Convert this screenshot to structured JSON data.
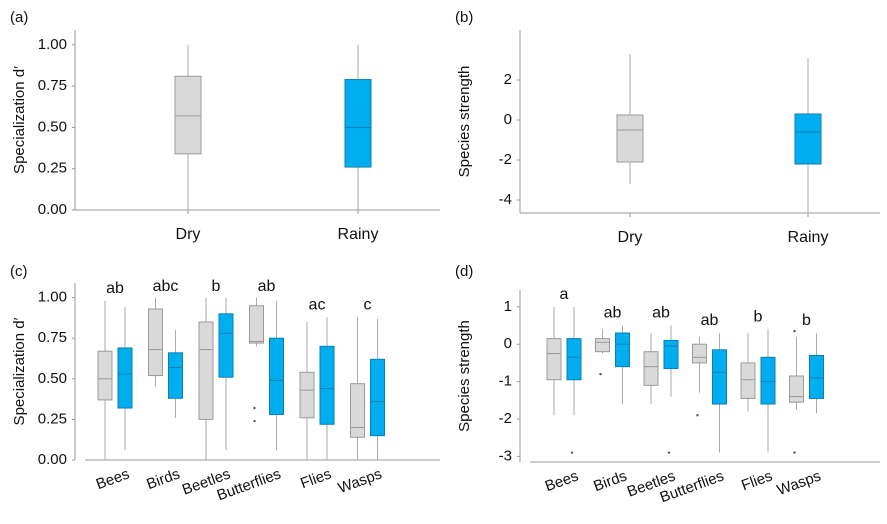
{
  "chart_data": [
    {
      "type": "box",
      "panel_label": "(a)",
      "y_label": "Specialization d′",
      "categories": [
        "Dry",
        "Rainy"
      ],
      "colors": [
        "#d9d9d9",
        "#00aeef"
      ],
      "values": [
        {
          "min": 0.0,
          "q1": 0.34,
          "median": 0.57,
          "q3": 0.81,
          "max": 1.0
        },
        {
          "min": 0.0,
          "q1": 0.26,
          "median": 0.5,
          "q3": 0.79,
          "max": 1.0
        }
      ],
      "ylim": [
        0,
        1.09
      ],
      "yticks": [
        {
          "value": 0,
          "label": "0.00"
        },
        {
          "value": 0.25,
          "label": "0.25"
        },
        {
          "value": 0.5,
          "label": "0.50"
        },
        {
          "value": 0.75,
          "label": "0.75"
        },
        {
          "value": 1,
          "label": "1.00"
        }
      ],
      "grid": false
    },
    {
      "type": "box",
      "panel_label": "(b)",
      "y_label": "Species strength",
      "categories": [
        "Dry",
        "Rainy"
      ],
      "colors": [
        "#d9d9d9",
        "#00aeef"
      ],
      "values": [
        {
          "min": -3.2,
          "q1": -2.1,
          "median": -0.5,
          "q3": 0.25,
          "max": 3.3
        },
        {
          "min": -4.6,
          "q1": -2.2,
          "median": -0.6,
          "q3": 0.3,
          "max": 3.1
        }
      ],
      "ylim": [
        -4.65,
        4.5
      ],
      "yticks": [
        -4,
        -2,
        0,
        2
      ],
      "grid": false
    },
    {
      "type": "grouped-box",
      "panel_label": "(c)",
      "y_label": "Specialization d′",
      "categories": [
        "Bees",
        "Birds",
        "Beetles",
        "Butterflies",
        "Flies",
        "Wasps"
      ],
      "letters": [
        "ab",
        "abc",
        "b",
        "ab",
        "ac",
        "c"
      ],
      "series": [
        {
          "color": "#d9d9d9",
          "values": [
            {
              "min": 0.0,
              "q1": 0.37,
              "median": 0.5,
              "q3": 0.67,
              "max": 0.98
            },
            {
              "min": 0.45,
              "q1": 0.52,
              "median": 0.68,
              "q3": 0.93,
              "max": 1.0
            },
            {
              "min": 0.0,
              "q1": 0.25,
              "median": 0.68,
              "q3": 0.85,
              "max": 1.0
            },
            {
              "min": 0.7,
              "q1": 0.72,
              "median": 0.73,
              "q3": 0.95,
              "max": 1.0,
              "outliers": [
                0.32,
                0.24
              ]
            },
            {
              "min": 0.0,
              "q1": 0.26,
              "median": 0.43,
              "q3": 0.54,
              "max": 0.85
            },
            {
              "min": 0.0,
              "q1": 0.14,
              "median": 0.2,
              "q3": 0.47,
              "max": 0.88
            }
          ]
        },
        {
          "color": "#00aeef",
          "values": [
            {
              "min": 0.06,
              "q1": 0.32,
              "median": 0.53,
              "q3": 0.69,
              "max": 0.94
            },
            {
              "min": 0.26,
              "q1": 0.38,
              "median": 0.57,
              "q3": 0.66,
              "max": 0.8
            },
            {
              "min": 0.06,
              "q1": 0.51,
              "median": 0.78,
              "q3": 0.9,
              "max": 1.0
            },
            {
              "min": 0.06,
              "q1": 0.28,
              "median": 0.49,
              "q3": 0.75,
              "max": 0.98
            },
            {
              "min": 0.0,
              "q1": 0.22,
              "median": 0.44,
              "q3": 0.7,
              "max": 0.88
            },
            {
              "min": 0.0,
              "q1": 0.15,
              "median": 0.36,
              "q3": 0.62,
              "max": 0.87
            }
          ]
        }
      ],
      "ylim": [
        0,
        1.09
      ],
      "yticks": [
        {
          "value": 0,
          "label": "0.00"
        },
        {
          "value": 0.25,
          "label": "0.25"
        },
        {
          "value": 0.5,
          "label": "0.50"
        },
        {
          "value": 0.75,
          "label": "0.75"
        },
        {
          "value": 1,
          "label": "1.00"
        }
      ],
      "grid": false
    },
    {
      "type": "grouped-box",
      "panel_label": "(d)",
      "y_label": "Species strength",
      "categories": [
        "Bees",
        "Birds",
        "Beetles",
        "Butterflies",
        "Flies",
        "Wasps"
      ],
      "letters": [
        "a",
        "ab",
        "ab",
        "ab",
        "b",
        "b"
      ],
      "series": [
        {
          "color": "#d9d9d9",
          "values": [
            {
              "min": -1.9,
              "q1": -0.95,
              "median": -0.25,
              "q3": 0.15,
              "max": 1.0
            },
            {
              "min": -0.25,
              "q1": -0.2,
              "median": 0.05,
              "q3": 0.15,
              "max": 0.4,
              "outliers": [
                -0.8
              ]
            },
            {
              "min": -1.6,
              "q1": -1.1,
              "median": -0.6,
              "q3": -0.2,
              "max": 0.3
            },
            {
              "min": -1.3,
              "q1": -0.5,
              "median": -0.35,
              "q3": 0.0,
              "max": 0.2,
              "outliers": [
                -1.9
              ]
            },
            {
              "min": -1.8,
              "q1": -1.45,
              "median": -0.95,
              "q3": -0.5,
              "max": 0.3
            },
            {
              "min": -1.75,
              "q1": -1.55,
              "median": -1.4,
              "q3": -0.85,
              "max": 0.2,
              "outliers": [
                -2.9,
                0.35
              ]
            }
          ]
        },
        {
          "color": "#00aeef",
          "values": [
            {
              "min": -1.9,
              "q1": -0.95,
              "median": -0.35,
              "q3": 0.15,
              "max": 1.0,
              "outliers": [
                -2.9
              ]
            },
            {
              "min": -1.6,
              "q1": -0.6,
              "median": 0.0,
              "q3": 0.3,
              "max": 0.5
            },
            {
              "min": -1.4,
              "q1": -0.65,
              "median": -0.05,
              "q3": 0.1,
              "max": 0.5,
              "outliers": [
                -2.9
              ]
            },
            {
              "min": -2.9,
              "q1": -1.6,
              "median": -0.75,
              "q3": -0.15,
              "max": 0.3
            },
            {
              "min": -2.9,
              "q1": -1.6,
              "median": -1.0,
              "q3": -0.35,
              "max": 0.4
            },
            {
              "min": -1.85,
              "q1": -1.45,
              "median": -0.9,
              "q3": -0.3,
              "max": 0.3
            }
          ]
        }
      ],
      "ylim": [
        -3.15,
        1.45
      ],
      "yticks": [
        -3,
        -2,
        -1,
        0,
        1
      ],
      "grid": false
    }
  ]
}
